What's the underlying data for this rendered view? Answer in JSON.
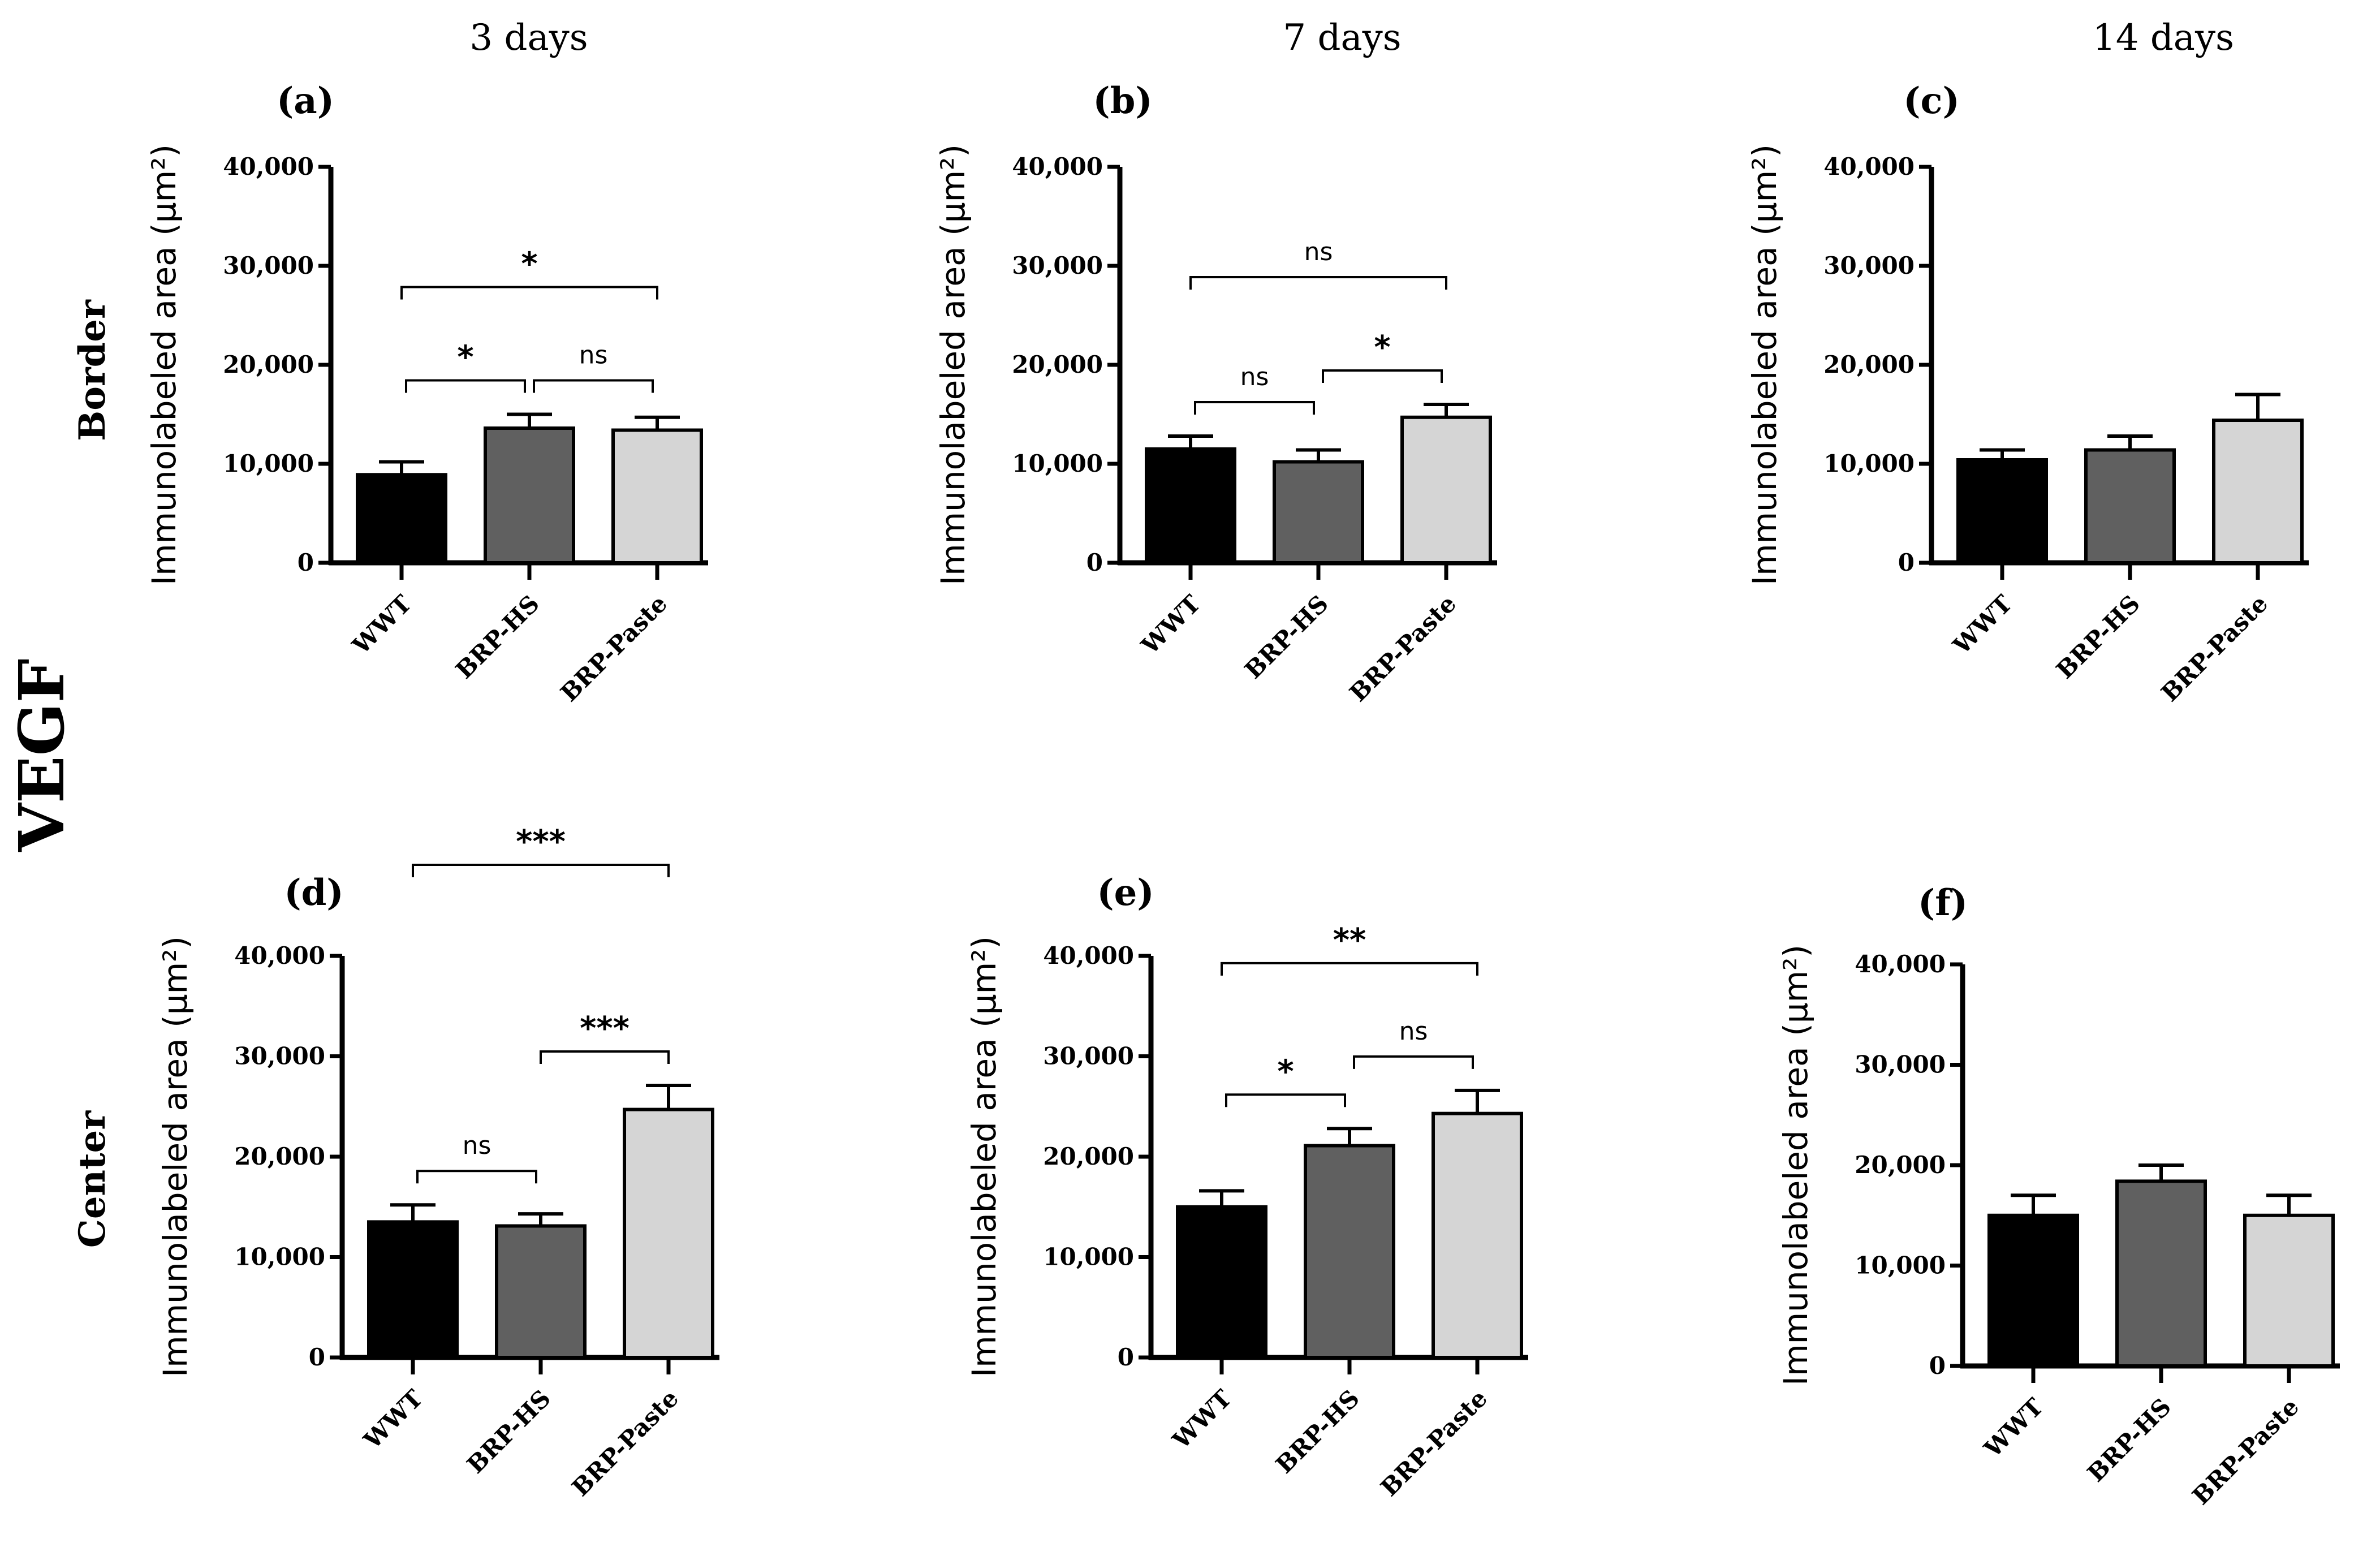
{
  "figure": {
    "column_headers": [
      "3 days",
      "7 days",
      "14 days"
    ],
    "row_headers": [
      "Border",
      "Center"
    ],
    "marker": "VEGF"
  },
  "colors": {
    "WWT": "#000000",
    "BRP-HS": "#606060",
    "BRP-Paste": "#d5d5d5",
    "axis": "#000000"
  },
  "chart_data": [
    {
      "panel": "(a)",
      "type": "bar",
      "time": "3 days",
      "region": "Border",
      "title": "",
      "xlabel": "",
      "ylabel": "Immunolabeled area (μm²)",
      "ylim": [
        0,
        40000
      ],
      "yticks": [
        0,
        10000,
        20000,
        30000,
        40000
      ],
      "ytick_labels": [
        "0",
        "10,000",
        "20,000",
        "30,000",
        "40,000"
      ],
      "categories": [
        "WWT",
        "BRP-HS",
        "BRP-Paste"
      ],
      "values": [
        8900,
        13600,
        13400
      ],
      "errors": [
        1300,
        1400,
        1300
      ],
      "comparisons": [
        {
          "from": 0,
          "to": 1,
          "label": "*",
          "level": 1
        },
        {
          "from": 1,
          "to": 2,
          "label": "ns",
          "level": 1
        },
        {
          "from": 0,
          "to": 2,
          "label": "*",
          "level": 2
        }
      ]
    },
    {
      "panel": "(b)",
      "type": "bar",
      "time": "7 days",
      "region": "Border",
      "title": "",
      "xlabel": "",
      "ylabel": "Immunolabeled area (μm²)",
      "ylim": [
        0,
        40000
      ],
      "yticks": [
        0,
        10000,
        20000,
        30000,
        40000
      ],
      "ytick_labels": [
        "0",
        "10,000",
        "20,000",
        "30,000",
        "40,000"
      ],
      "categories": [
        "WWT",
        "BRP-HS",
        "BRP-Paste"
      ],
      "values": [
        11500,
        10200,
        14700
      ],
      "errors": [
        1300,
        1200,
        1300
      ],
      "comparisons": [
        {
          "from": 0,
          "to": 1,
          "label": "ns",
          "level": 1
        },
        {
          "from": 1,
          "to": 2,
          "label": "*",
          "level": 1
        },
        {
          "from": 0,
          "to": 2,
          "label": "ns",
          "level": 2
        }
      ]
    },
    {
      "panel": "(c)",
      "type": "bar",
      "time": "14 days",
      "region": "Border",
      "title": "",
      "xlabel": "",
      "ylabel": "Immunolabeled area (μm²)",
      "ylim": [
        0,
        40000
      ],
      "yticks": [
        0,
        10000,
        20000,
        30000,
        40000
      ],
      "ytick_labels": [
        "0",
        "10,000",
        "20,000",
        "30,000",
        "40,000"
      ],
      "categories": [
        "WWT",
        "BRP-HS",
        "BRP-Paste"
      ],
      "values": [
        10400,
        11400,
        14400
      ],
      "errors": [
        1000,
        1400,
        2600
      ],
      "comparisons": []
    },
    {
      "panel": "(d)",
      "type": "bar",
      "time": "3 days",
      "region": "Center",
      "title": "",
      "xlabel": "",
      "ylabel": "Immunolabeled area (μm²)",
      "ylim": [
        0,
        40000
      ],
      "yticks": [
        0,
        10000,
        20000,
        30000,
        40000
      ],
      "ytick_labels": [
        "0",
        "10,000",
        "20,000",
        "30,000",
        "40,000"
      ],
      "categories": [
        "WWT",
        "BRP-HS",
        "BRP-Paste"
      ],
      "values": [
        13500,
        13100,
        24700
      ],
      "errors": [
        1700,
        1200,
        2400
      ],
      "comparisons": [
        {
          "from": 0,
          "to": 1,
          "label": "ns",
          "level": 1
        },
        {
          "from": 1,
          "to": 2,
          "label": "***",
          "level": 2
        },
        {
          "from": 0,
          "to": 2,
          "label": "***",
          "level": 3
        }
      ]
    },
    {
      "panel": "(e)",
      "type": "bar",
      "time": "7 days",
      "region": "Center",
      "title": "",
      "xlabel": "",
      "ylabel": "Immunolabeled area (μm²)",
      "ylim": [
        0,
        40000
      ],
      "yticks": [
        0,
        10000,
        20000,
        30000,
        40000
      ],
      "ytick_labels": [
        "0",
        "10,000",
        "20,000",
        "30,000",
        "40,000"
      ],
      "categories": [
        "WWT",
        "BRP-HS",
        "BRP-Paste"
      ],
      "values": [
        15000,
        21100,
        24300
      ],
      "errors": [
        1600,
        1700,
        2300
      ],
      "comparisons": [
        {
          "from": 0,
          "to": 1,
          "label": "*",
          "level": 1
        },
        {
          "from": 1,
          "to": 2,
          "label": "ns",
          "level": 1
        },
        {
          "from": 0,
          "to": 2,
          "label": "**",
          "level": 2
        }
      ]
    },
    {
      "panel": "(f)",
      "type": "bar",
      "time": "14 days",
      "region": "Center",
      "title": "",
      "xlabel": "",
      "ylabel": "Immunolabeled area (μm²)",
      "ylim": [
        0,
        40000
      ],
      "yticks": [
        0,
        10000,
        20000,
        30000,
        40000
      ],
      "ytick_labels": [
        "0",
        "10,000",
        "20,000",
        "30,000",
        "40,000"
      ],
      "categories": [
        "WWT",
        "BRP-HS",
        "BRP-Paste"
      ],
      "values": [
        15000,
        18400,
        15000
      ],
      "errors": [
        2000,
        1600,
        2000
      ],
      "comparisons": []
    }
  ]
}
